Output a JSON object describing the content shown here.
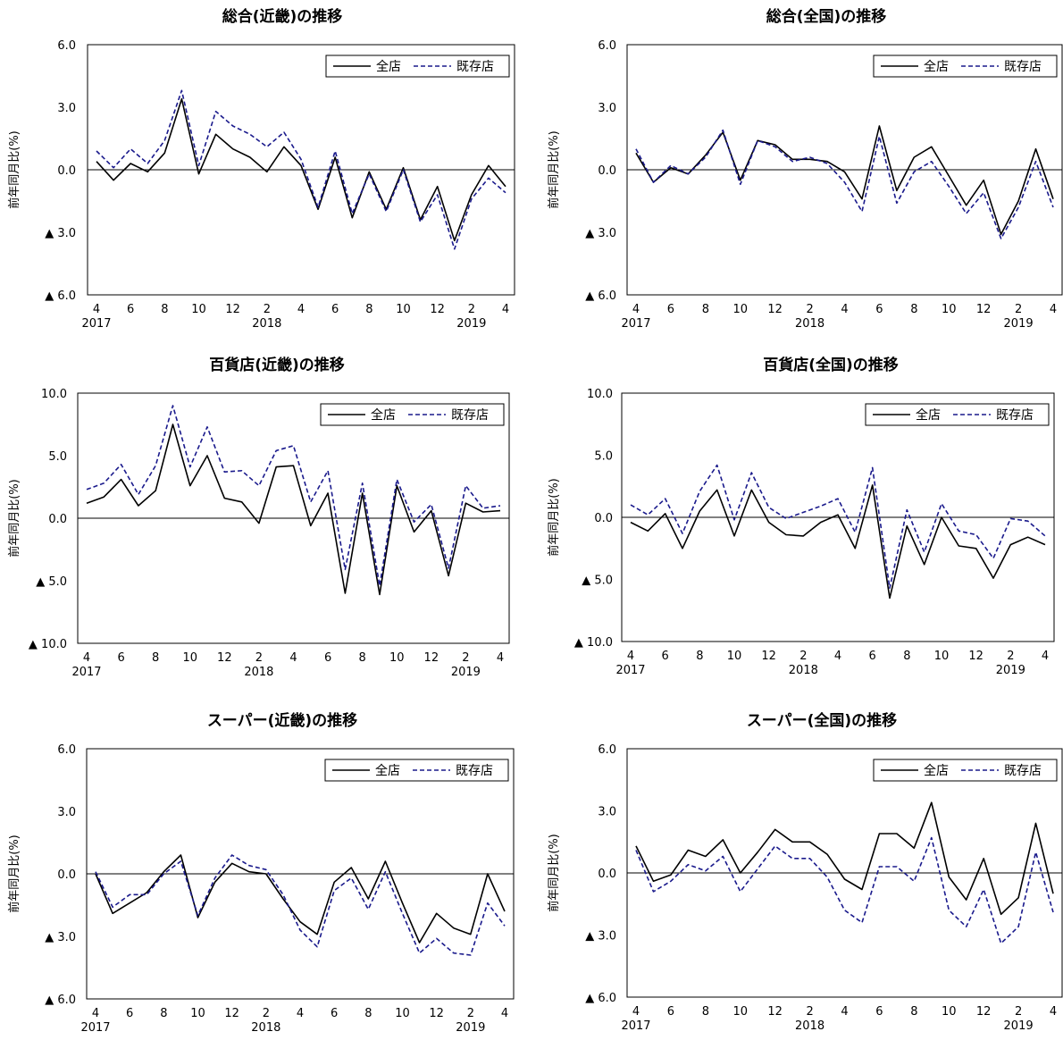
{
  "legend": {
    "all": "全店",
    "existing": "既存店"
  },
  "ylabel": "前年同月比(%)",
  "colors": {
    "all": "#000000",
    "existing": "#1a1a8c",
    "axis": "#000000"
  },
  "x_tick_labels": [
    "4",
    "6",
    "8",
    "10",
    "12",
    "2",
    "4",
    "6",
    "8",
    "10",
    "12",
    "2",
    "4"
  ],
  "year_labels": [
    "2017",
    "2018",
    "2019"
  ],
  "chart_data": [
    {
      "type": "line",
      "title": "総合(近畿)の推移",
      "ylabel": "前年同月比(%)",
      "ylim": [
        -6,
        6
      ],
      "y_ticks": [
        6,
        3,
        0,
        -3,
        -6
      ],
      "y_tick_labels": [
        "6.0",
        "3.0",
        "0.0",
        "▲ 3.0",
        "▲ 6.0"
      ],
      "legend_position": "top-right",
      "x": [
        "2017-04",
        "2017-05",
        "2017-06",
        "2017-07",
        "2017-08",
        "2017-09",
        "2017-10",
        "2017-11",
        "2017-12",
        "2018-01",
        "2018-02",
        "2018-03",
        "2018-04",
        "2018-05",
        "2018-06",
        "2018-07",
        "2018-08",
        "2018-09",
        "2018-10",
        "2018-11",
        "2018-12",
        "2019-01",
        "2019-02",
        "2019-03",
        "2019-04"
      ],
      "series": [
        {
          "name": "全店",
          "values": [
            0.4,
            -0.5,
            0.3,
            -0.1,
            0.8,
            3.4,
            -0.2,
            1.7,
            1.0,
            0.6,
            -0.1,
            1.1,
            0.2,
            -1.9,
            0.6,
            -2.3,
            -0.1,
            -1.9,
            0.1,
            -2.4,
            -0.8,
            -3.4,
            -1.2,
            0.2,
            -0.8
          ]
        },
        {
          "name": "既存店",
          "values": [
            0.9,
            0.1,
            1.0,
            0.3,
            1.4,
            3.8,
            0.2,
            2.8,
            2.1,
            1.7,
            1.1,
            1.8,
            0.5,
            -1.8,
            0.9,
            -2.1,
            -0.2,
            -2.0,
            0.0,
            -2.5,
            -1.2,
            -3.8,
            -1.4,
            -0.4,
            -1.1
          ]
        }
      ]
    },
    {
      "type": "line",
      "title": "総合(全国)の推移",
      "ylabel": "前年同月比(%)",
      "ylim": [
        -6,
        6
      ],
      "y_ticks": [
        6,
        3,
        0,
        -3,
        -6
      ],
      "y_tick_labels": [
        "6.0",
        "3.0",
        "0.0",
        "▲ 3.0",
        "▲ 6.0"
      ],
      "legend_position": "top-right",
      "x": [
        "2017-04",
        "2017-05",
        "2017-06",
        "2017-07",
        "2017-08",
        "2017-09",
        "2017-10",
        "2017-11",
        "2017-12",
        "2018-01",
        "2018-02",
        "2018-03",
        "2018-04",
        "2018-05",
        "2018-06",
        "2018-07",
        "2018-08",
        "2018-09",
        "2018-10",
        "2018-11",
        "2018-12",
        "2019-01",
        "2019-02",
        "2019-03",
        "2019-04"
      ],
      "series": [
        {
          "name": "全店",
          "values": [
            0.8,
            -0.6,
            0.1,
            -0.2,
            0.7,
            1.8,
            -0.5,
            1.4,
            1.2,
            0.5,
            0.5,
            0.4,
            -0.1,
            -1.4,
            2.1,
            -1.0,
            0.6,
            1.1,
            -0.3,
            -1.7,
            -0.5,
            -3.1,
            -1.5,
            1.0,
            -1.4
          ]
        },
        {
          "name": "既存店",
          "values": [
            1.0,
            -0.6,
            0.2,
            -0.2,
            0.6,
            1.9,
            -0.7,
            1.4,
            1.1,
            0.4,
            0.6,
            0.3,
            -0.6,
            -2.0,
            1.6,
            -1.6,
            -0.1,
            0.4,
            -0.8,
            -2.1,
            -1.1,
            -3.3,
            -1.8,
            0.4,
            -1.8
          ]
        }
      ]
    },
    {
      "type": "line",
      "title": "百貨店(近畿)の推移",
      "ylabel": "前年同月比(%)",
      "ylim": [
        -10,
        10
      ],
      "y_ticks": [
        10,
        5,
        0,
        -5,
        -10
      ],
      "y_tick_labels": [
        "10.0",
        "5.0",
        "0.0",
        "▲ 5.0",
        "▲ 10.0"
      ],
      "legend_position": "top-right",
      "x": [
        "2017-04",
        "2017-05",
        "2017-06",
        "2017-07",
        "2017-08",
        "2017-09",
        "2017-10",
        "2017-11",
        "2017-12",
        "2018-01",
        "2018-02",
        "2018-03",
        "2018-04",
        "2018-05",
        "2018-06",
        "2018-07",
        "2018-08",
        "2018-09",
        "2018-10",
        "2018-11",
        "2018-12",
        "2019-01",
        "2019-02",
        "2019-03",
        "2019-04"
      ],
      "series": [
        {
          "name": "全店",
          "values": [
            1.2,
            1.7,
            3.1,
            1.0,
            2.2,
            7.5,
            2.6,
            5.0,
            1.6,
            1.3,
            -0.4,
            4.1,
            4.2,
            -0.6,
            2.0,
            -6.0,
            2.0,
            -6.1,
            2.6,
            -1.1,
            0.6,
            -4.6,
            1.2,
            0.5,
            0.6
          ]
        },
        {
          "name": "既存店",
          "values": [
            2.3,
            2.8,
            4.3,
            1.9,
            4.2,
            9.0,
            4.1,
            7.3,
            3.7,
            3.8,
            2.6,
            5.4,
            5.8,
            1.3,
            3.8,
            -4.1,
            2.8,
            -5.4,
            3.1,
            -0.3,
            1.1,
            -4.0,
            2.6,
            0.8,
            1.0
          ]
        }
      ]
    },
    {
      "type": "line",
      "title": "百貨店(全国)の推移",
      "ylabel": "前年同月比(%)",
      "ylim": [
        -10,
        10
      ],
      "y_ticks": [
        10,
        5,
        0,
        -5,
        -10
      ],
      "y_tick_labels": [
        "10.0",
        "5.0",
        "0.0",
        "▲ 5.0",
        "▲ 10.0"
      ],
      "legend_position": "top-right",
      "x": [
        "2017-04",
        "2017-05",
        "2017-06",
        "2017-07",
        "2017-08",
        "2017-09",
        "2017-10",
        "2017-11",
        "2017-12",
        "2018-01",
        "2018-02",
        "2018-03",
        "2018-04",
        "2018-05",
        "2018-06",
        "2018-07",
        "2018-08",
        "2018-09",
        "2018-10",
        "2018-11",
        "2018-12",
        "2019-01",
        "2019-02",
        "2019-03",
        "2019-04"
      ],
      "series": [
        {
          "name": "全店",
          "values": [
            -0.4,
            -1.1,
            0.3,
            -2.5,
            0.5,
            2.2,
            -1.5,
            2.2,
            -0.4,
            -1.4,
            -1.5,
            -0.4,
            0.2,
            -2.5,
            2.6,
            -6.5,
            -0.7,
            -3.8,
            0.0,
            -2.3,
            -2.5,
            -4.9,
            -2.2,
            -1.6,
            -2.2
          ]
        },
        {
          "name": "既存店",
          "values": [
            1.0,
            0.2,
            1.5,
            -1.3,
            2.1,
            4.2,
            -0.2,
            3.6,
            0.8,
            -0.1,
            0.4,
            0.9,
            1.5,
            -1.2,
            4.0,
            -5.7,
            0.6,
            -2.8,
            1.1,
            -1.1,
            -1.4,
            -3.3,
            -0.1,
            -0.3,
            -1.5
          ]
        }
      ]
    },
    {
      "type": "line",
      "title": "スーパー(近畿)の推移",
      "ylabel": "前年同月比(%)",
      "ylim": [
        -6,
        6
      ],
      "y_ticks": [
        6,
        3,
        0,
        -3,
        -6
      ],
      "y_tick_labels": [
        "6.0",
        "3.0",
        "0.0",
        "▲ 3.0",
        "▲ 6.0"
      ],
      "legend_position": "top-right",
      "x": [
        "2017-04",
        "2017-05",
        "2017-06",
        "2017-07",
        "2017-08",
        "2017-09",
        "2017-10",
        "2017-11",
        "2017-12",
        "2018-01",
        "2018-02",
        "2018-03",
        "2018-04",
        "2018-05",
        "2018-06",
        "2018-07",
        "2018-08",
        "2018-09",
        "2018-10",
        "2018-11",
        "2018-12",
        "2019-01",
        "2019-02",
        "2019-03",
        "2019-04"
      ],
      "series": [
        {
          "name": "全店",
          "values": [
            0.0,
            -1.9,
            -1.4,
            -0.9,
            0.1,
            0.9,
            -2.1,
            -0.4,
            0.5,
            0.1,
            0.0,
            -1.2,
            -2.3,
            -2.9,
            -0.4,
            0.3,
            -1.2,
            0.6,
            -1.4,
            -3.3,
            -1.9,
            -2.6,
            -2.9,
            0.0,
            -1.8
          ]
        },
        {
          "name": "既存店",
          "values": [
            0.1,
            -1.6,
            -1.0,
            -1.0,
            0.0,
            0.6,
            -2.0,
            -0.2,
            0.9,
            0.4,
            0.2,
            -1.0,
            -2.7,
            -3.5,
            -0.8,
            -0.2,
            -1.7,
            0.1,
            -1.9,
            -3.8,
            -3.1,
            -3.8,
            -3.9,
            -1.4,
            -2.5
          ]
        }
      ]
    },
    {
      "type": "line",
      "title": "スーパー(全国)の推移",
      "ylabel": "前年同月比(%)",
      "ylim": [
        -6,
        6
      ],
      "y_ticks": [
        6,
        3,
        0,
        -3,
        -6
      ],
      "y_tick_labels": [
        "6.0",
        "3.0",
        "0.0",
        "▲ 3.0",
        "▲ 6.0"
      ],
      "legend_position": "top-right",
      "x": [
        "2017-04",
        "2017-05",
        "2017-06",
        "2017-07",
        "2017-08",
        "2017-09",
        "2017-10",
        "2017-11",
        "2017-12",
        "2018-01",
        "2018-02",
        "2018-03",
        "2018-04",
        "2018-05",
        "2018-06",
        "2018-07",
        "2018-08",
        "2018-09",
        "2018-10",
        "2018-11",
        "2018-12",
        "2019-01",
        "2019-02",
        "2019-03",
        "2019-04"
      ],
      "series": [
        {
          "name": "全店",
          "values": [
            1.3,
            -0.4,
            -0.1,
            1.1,
            0.8,
            1.6,
            0.0,
            1.0,
            2.1,
            1.5,
            1.5,
            0.9,
            -0.3,
            -0.8,
            1.9,
            1.9,
            1.2,
            3.4,
            -0.2,
            -1.3,
            0.7,
            -2.0,
            -1.2,
            2.4,
            -1.0
          ]
        },
        {
          "name": "既存店",
          "values": [
            1.1,
            -0.9,
            -0.4,
            0.4,
            0.1,
            0.8,
            -0.9,
            0.2,
            1.3,
            0.7,
            0.7,
            -0.2,
            -1.8,
            -2.4,
            0.3,
            0.3,
            -0.4,
            1.7,
            -1.8,
            -2.6,
            -0.8,
            -3.4,
            -2.6,
            1.0,
            -1.9
          ]
        }
      ]
    }
  ]
}
